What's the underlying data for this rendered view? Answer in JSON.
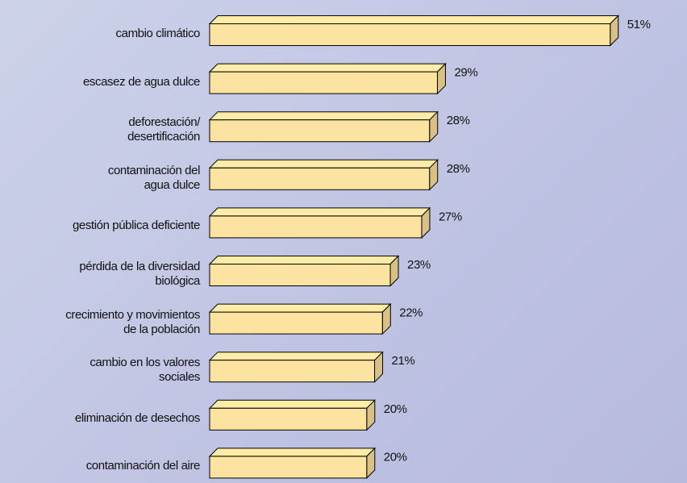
{
  "chart_data": {
    "type": "bar",
    "orientation": "horizontal",
    "categories": [
      "cambio climático",
      "escasez de agua dulce",
      "deforestación/\ndesertificación",
      "contaminación del\nagua dulce",
      "gestión pública deficiente",
      "pérdida de la diversidad\nbiológica",
      "crecimiento y movimientos\nde la población",
      "cambio en los valores\nsociales",
      "eliminación de desechos",
      "contaminación del aire"
    ],
    "values": [
      51,
      29,
      28,
      28,
      27,
      23,
      22,
      21,
      20,
      20
    ],
    "value_labels": [
      "51%",
      "29%",
      "28%",
      "28%",
      "27%",
      "23%",
      "22%",
      "21%",
      "20%",
      "20%"
    ],
    "color": "#fde3a0"
  }
}
